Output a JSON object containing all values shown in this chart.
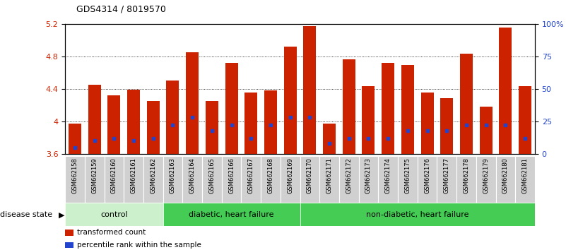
{
  "title": "GDS4314 / 8019570",
  "samples": [
    "GSM662158",
    "GSM662159",
    "GSM662160",
    "GSM662161",
    "GSM662162",
    "GSM662163",
    "GSM662164",
    "GSM662165",
    "GSM662166",
    "GSM662167",
    "GSM662168",
    "GSM662169",
    "GSM662170",
    "GSM662171",
    "GSM662172",
    "GSM662173",
    "GSM662174",
    "GSM662175",
    "GSM662176",
    "GSM662177",
    "GSM662178",
    "GSM662179",
    "GSM662180",
    "GSM662181"
  ],
  "transformed_count": [
    3.97,
    4.45,
    4.32,
    4.39,
    4.25,
    4.5,
    4.85,
    4.25,
    4.72,
    4.35,
    4.38,
    4.92,
    5.17,
    3.97,
    4.76,
    4.43,
    4.72,
    4.69,
    4.35,
    4.28,
    4.83,
    4.18,
    5.15,
    4.43
  ],
  "percentile_rank": [
    5,
    10,
    12,
    10,
    12,
    22,
    28,
    18,
    22,
    12,
    22,
    28,
    28,
    8,
    12,
    12,
    12,
    18,
    18,
    18,
    22,
    22,
    22,
    12
  ],
  "bar_color": "#cc2200",
  "marker_color": "#2244cc",
  "ymin": 3.6,
  "ymax": 5.2,
  "yticks": [
    3.6,
    4.0,
    4.4,
    4.8,
    5.2
  ],
  "ytick_labels": [
    "3.6",
    "4",
    "4.4",
    "4.8",
    "5.2"
  ],
  "ytick_labels_right": [
    "0",
    "25",
    "50",
    "75",
    "100%"
  ],
  "grid_values": [
    4.0,
    4.4,
    4.8
  ],
  "disease_state_label": "disease state",
  "groups": [
    {
      "label": "control",
      "start": 0,
      "end": 4,
      "color": "#cceecc"
    },
    {
      "label": "diabetic, heart failure",
      "start": 5,
      "end": 11,
      "color": "#44cc66"
    },
    {
      "label": "non-diabetic, heart failure",
      "start": 12,
      "end": 23,
      "color": "#44cc66"
    }
  ],
  "legend_items": [
    {
      "color": "#cc2200",
      "label": "transformed count"
    },
    {
      "color": "#2244cc",
      "label": "percentile rank within the sample"
    }
  ]
}
